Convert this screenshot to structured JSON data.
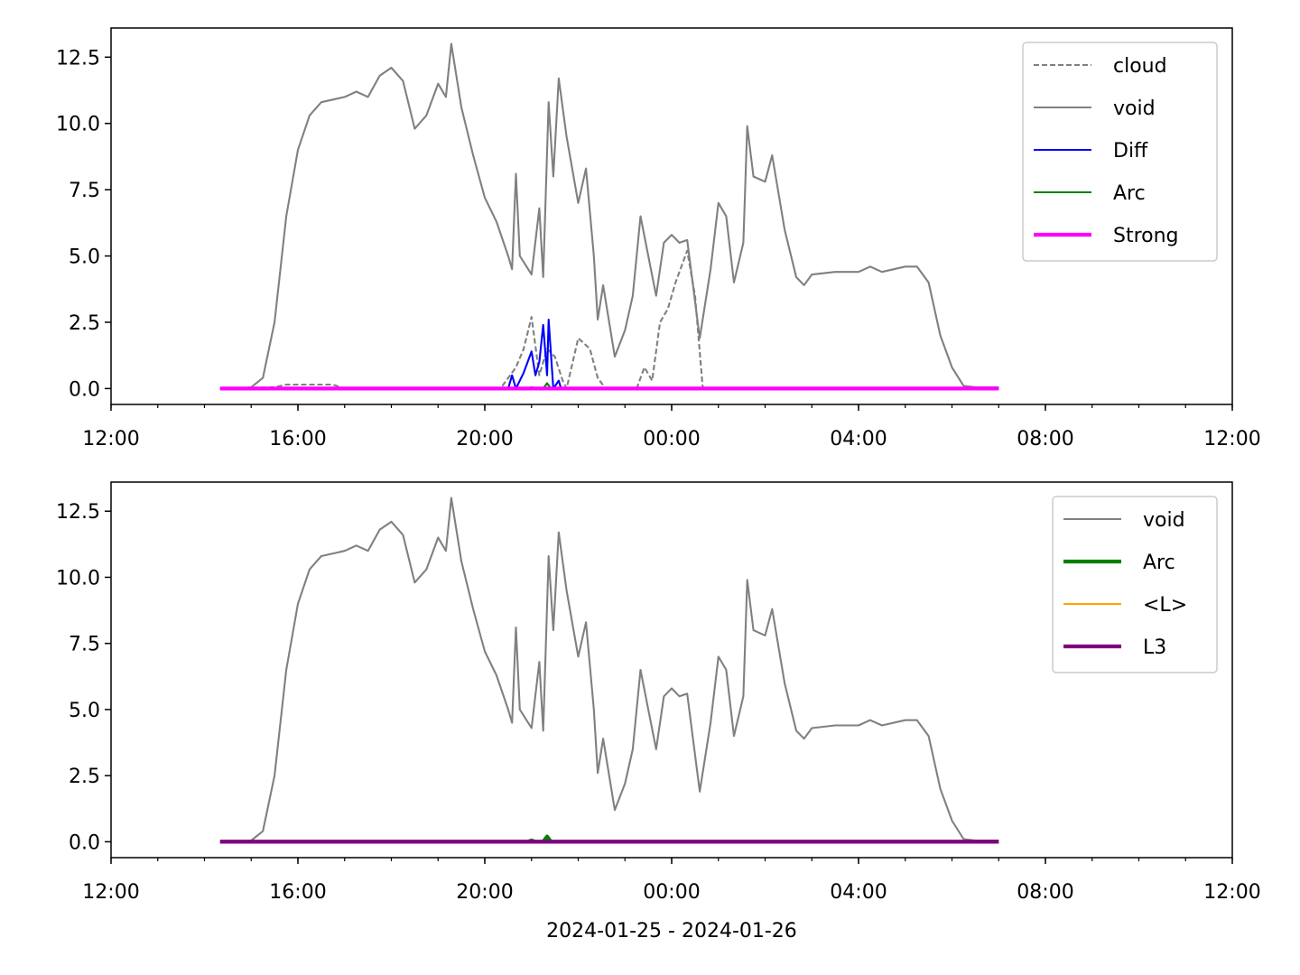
{
  "chart_data": [
    {
      "type": "line",
      "xlim": [
        "2024-01-25 12:00",
        "2024-01-26 12:00"
      ],
      "xticks": [
        {
          "value": "2024-01-25 12:00",
          "label": "12:00"
        },
        {
          "value": "2024-01-25 16:00",
          "label": "16:00"
        },
        {
          "value": "2024-01-25 20:00",
          "label": "20:00"
        },
        {
          "value": "2024-01-26 00:00",
          "label": "00:00"
        },
        {
          "value": "2024-01-26 04:00",
          "label": "04:00"
        },
        {
          "value": "2024-01-26 08:00",
          "label": "08:00"
        },
        {
          "value": "2024-01-26 12:00",
          "label": "12:00"
        }
      ],
      "ylim": [
        -0.6,
        13.6
      ],
      "yticks": [
        {
          "value": 0,
          "label": "0.0"
        },
        2.5,
        {
          "value": 5,
          "label": "5.0"
        },
        7.5,
        {
          "value": 10,
          "label": "10.0"
        },
        12.5
      ],
      "legend": "upper right",
      "series": [
        {
          "name": "cloud",
          "color": "#808080",
          "linestyle": "dashed",
          "linewidth": 1.5,
          "x": [
            "2024-01-25 14:20",
            "2024-01-25 15:30",
            "2024-01-25 15:45",
            "2024-01-25 16:45",
            "2024-01-25 17:00",
            "2024-01-25 20:20",
            "2024-01-25 20:40",
            "2024-01-25 20:50",
            "2024-01-25 21:00",
            "2024-01-25 21:10",
            "2024-01-25 21:20",
            "2024-01-25 21:30",
            "2024-01-25 21:40",
            "2024-01-25 21:45",
            "2024-01-25 22:00",
            "2024-01-25 22:15",
            "2024-01-25 22:25",
            "2024-01-25 22:35",
            "2024-01-25 23:15",
            "2024-01-25 23:25",
            "2024-01-25 23:35",
            "2024-01-25 23:45",
            "2024-01-25 23:55",
            "2024-01-26 00:05",
            "2024-01-26 00:20",
            "2024-01-26 00:30",
            "2024-01-26 00:40",
            "2024-01-26 07:00"
          ],
          "values": [
            0,
            0.05,
            0.15,
            0.15,
            0,
            0,
            0.8,
            1.5,
            2.7,
            0.5,
            1.5,
            1.2,
            0.3,
            0,
            1.9,
            1.5,
            0.4,
            0,
            0,
            0.8,
            0.3,
            2.5,
            3.0,
            4.0,
            5.2,
            3.5,
            0,
            0
          ]
        },
        {
          "name": "void",
          "color": "#808080",
          "linestyle": "solid",
          "linewidth": 1.5,
          "x": [
            "2024-01-25 14:20",
            "2024-01-25 14:45",
            "2024-01-25 15:00",
            "2024-01-25 15:15",
            "2024-01-25 15:30",
            "2024-01-25 15:45",
            "2024-01-25 16:00",
            "2024-01-25 16:15",
            "2024-01-25 16:30",
            "2024-01-25 16:45",
            "2024-01-25 17:00",
            "2024-01-25 17:15",
            "2024-01-25 17:30",
            "2024-01-25 17:45",
            "2024-01-25 18:00",
            "2024-01-25 18:15",
            "2024-01-25 18:30",
            "2024-01-25 18:45",
            "2024-01-25 19:00",
            "2024-01-25 19:10",
            "2024-01-25 19:17",
            "2024-01-25 19:30",
            "2024-01-25 19:45",
            "2024-01-25 20:00",
            "2024-01-25 20:15",
            "2024-01-25 20:30",
            "2024-01-25 20:35",
            "2024-01-25 20:40",
            "2024-01-25 20:45",
            "2024-01-25 21:00",
            "2024-01-25 21:10",
            "2024-01-25 21:15",
            "2024-01-25 21:22",
            "2024-01-25 21:28",
            "2024-01-25 21:35",
            "2024-01-25 21:45",
            "2024-01-25 22:00",
            "2024-01-25 22:10",
            "2024-01-25 22:20",
            "2024-01-25 22:25",
            "2024-01-25 22:32",
            "2024-01-25 22:47",
            "2024-01-25 23:00",
            "2024-01-25 23:10",
            "2024-01-25 23:20",
            "2024-01-25 23:30",
            "2024-01-25 23:40",
            "2024-01-25 23:50",
            "2024-01-26 00:00",
            "2024-01-26 00:10",
            "2024-01-26 00:20",
            "2024-01-26 00:36",
            "2024-01-26 00:50",
            "2024-01-26 01:00",
            "2024-01-26 01:10",
            "2024-01-26 01:20",
            "2024-01-26 01:32",
            "2024-01-26 01:37",
            "2024-01-26 01:45",
            "2024-01-26 02:00",
            "2024-01-26 02:09",
            "2024-01-26 02:25",
            "2024-01-26 02:40",
            "2024-01-26 02:50",
            "2024-01-26 03:00",
            "2024-01-26 03:30",
            "2024-01-26 04:00",
            "2024-01-26 04:15",
            "2024-01-26 04:30",
            "2024-01-26 05:00",
            "2024-01-26 05:15",
            "2024-01-26 05:30",
            "2024-01-26 05:45",
            "2024-01-26 06:00",
            "2024-01-26 06:15",
            "2024-01-26 06:30",
            "2024-01-26 07:00"
          ],
          "values": [
            0,
            0,
            0.05,
            0.4,
            2.5,
            6.5,
            9.0,
            10.3,
            10.8,
            10.9,
            11.0,
            11.2,
            11.0,
            11.8,
            12.1,
            11.6,
            9.8,
            10.3,
            11.5,
            11.0,
            13.0,
            10.6,
            8.8,
            7.2,
            6.3,
            5.0,
            4.5,
            8.1,
            5.0,
            4.3,
            6.8,
            4.2,
            10.8,
            8.0,
            11.7,
            9.5,
            7.0,
            8.3,
            5.0,
            2.6,
            3.9,
            1.2,
            2.2,
            3.5,
            6.5,
            5.0,
            3.5,
            5.5,
            5.8,
            5.5,
            5.6,
            1.9,
            4.5,
            7.0,
            6.5,
            4.0,
            5.5,
            9.9,
            8.0,
            7.8,
            8.8,
            6.0,
            4.2,
            3.9,
            4.3,
            4.4,
            4.4,
            4.6,
            4.4,
            4.6,
            4.6,
            4.0,
            2.0,
            0.8,
            0.1,
            0.05,
            0.05
          ]
        },
        {
          "name": "Diff",
          "color": "#0000ff",
          "linestyle": "solid",
          "linewidth": 1.5,
          "x": [
            "2024-01-25 14:20",
            "2024-01-25 20:30",
            "2024-01-25 20:35",
            "2024-01-25 20:40",
            "2024-01-25 20:50",
            "2024-01-25 21:00",
            "2024-01-25 21:05",
            "2024-01-25 21:10",
            "2024-01-25 21:15",
            "2024-01-25 21:20",
            "2024-01-25 21:22",
            "2024-01-25 21:28",
            "2024-01-25 21:35",
            "2024-01-25 21:38",
            "2024-01-26 07:00"
          ],
          "values": [
            0,
            0,
            0.5,
            0,
            0.6,
            1.4,
            0.5,
            1.0,
            2.4,
            0.5,
            2.6,
            0,
            0.3,
            0,
            0
          ]
        },
        {
          "name": "Arc",
          "color": "#008000",
          "linestyle": "solid",
          "linewidth": 1.5,
          "x": [
            "2024-01-25 14:20",
            "2024-01-25 20:55",
            "2024-01-25 21:00",
            "2024-01-25 21:05",
            "2024-01-25 21:15",
            "2024-01-25 21:20",
            "2024-01-25 21:25",
            "2024-01-26 07:00"
          ],
          "values": [
            0,
            0,
            0.05,
            0,
            0,
            0.2,
            0,
            0
          ]
        },
        {
          "name": "Strong",
          "color": "#ff00ff",
          "linestyle": "solid",
          "linewidth": 3,
          "x": [
            "2024-01-25 14:20",
            "2024-01-26 07:00"
          ],
          "values": [
            0,
            0
          ]
        }
      ]
    },
    {
      "type": "line",
      "xlabel": "2024-01-25 - 2024-01-26",
      "xlim": [
        "2024-01-25 12:00",
        "2024-01-26 12:00"
      ],
      "xticks": [
        {
          "value": "2024-01-25 12:00",
          "label": "12:00"
        },
        {
          "value": "2024-01-25 16:00",
          "label": "16:00"
        },
        {
          "value": "2024-01-25 20:00",
          "label": "20:00"
        },
        {
          "value": "2024-01-26 00:00",
          "label": "00:00"
        },
        {
          "value": "2024-01-26 04:00",
          "label": "04:00"
        },
        {
          "value": "2024-01-26 08:00",
          "label": "08:00"
        },
        {
          "value": "2024-01-26 12:00",
          "label": "12:00"
        }
      ],
      "ylim": [
        -0.6,
        13.6
      ],
      "yticks": [
        {
          "value": 0,
          "label": "0.0"
        },
        2.5,
        {
          "value": 5,
          "label": "5.0"
        },
        7.5,
        {
          "value": 10,
          "label": "10.0"
        },
        12.5
      ],
      "legend": "upper right",
      "series": [
        {
          "name": "void",
          "color": "#808080",
          "linestyle": "solid",
          "linewidth": 1.5,
          "x": [
            "2024-01-25 14:20",
            "2024-01-25 14:45",
            "2024-01-25 15:00",
            "2024-01-25 15:15",
            "2024-01-25 15:30",
            "2024-01-25 15:45",
            "2024-01-25 16:00",
            "2024-01-25 16:15",
            "2024-01-25 16:30",
            "2024-01-25 16:45",
            "2024-01-25 17:00",
            "2024-01-25 17:15",
            "2024-01-25 17:30",
            "2024-01-25 17:45",
            "2024-01-25 18:00",
            "2024-01-25 18:15",
            "2024-01-25 18:30",
            "2024-01-25 18:45",
            "2024-01-25 19:00",
            "2024-01-25 19:10",
            "2024-01-25 19:17",
            "2024-01-25 19:30",
            "2024-01-25 19:45",
            "2024-01-25 20:00",
            "2024-01-25 20:15",
            "2024-01-25 20:30",
            "2024-01-25 20:35",
            "2024-01-25 20:40",
            "2024-01-25 20:45",
            "2024-01-25 21:00",
            "2024-01-25 21:10",
            "2024-01-25 21:15",
            "2024-01-25 21:22",
            "2024-01-25 21:28",
            "2024-01-25 21:35",
            "2024-01-25 21:45",
            "2024-01-25 22:00",
            "2024-01-25 22:10",
            "2024-01-25 22:20",
            "2024-01-25 22:25",
            "2024-01-25 22:32",
            "2024-01-25 22:47",
            "2024-01-25 23:00",
            "2024-01-25 23:10",
            "2024-01-25 23:20",
            "2024-01-25 23:30",
            "2024-01-25 23:40",
            "2024-01-25 23:50",
            "2024-01-26 00:00",
            "2024-01-26 00:10",
            "2024-01-26 00:20",
            "2024-01-26 00:36",
            "2024-01-26 00:50",
            "2024-01-26 01:00",
            "2024-01-26 01:10",
            "2024-01-26 01:20",
            "2024-01-26 01:32",
            "2024-01-26 01:37",
            "2024-01-26 01:45",
            "2024-01-26 02:00",
            "2024-01-26 02:09",
            "2024-01-26 02:25",
            "2024-01-26 02:40",
            "2024-01-26 02:50",
            "2024-01-26 03:00",
            "2024-01-26 03:30",
            "2024-01-26 04:00",
            "2024-01-26 04:15",
            "2024-01-26 04:30",
            "2024-01-26 05:00",
            "2024-01-26 05:15",
            "2024-01-26 05:30",
            "2024-01-26 05:45",
            "2024-01-26 06:00",
            "2024-01-26 06:15",
            "2024-01-26 06:30",
            "2024-01-26 07:00"
          ],
          "values": [
            0,
            0,
            0.05,
            0.4,
            2.5,
            6.5,
            9.0,
            10.3,
            10.8,
            10.9,
            11.0,
            11.2,
            11.0,
            11.8,
            12.1,
            11.6,
            9.8,
            10.3,
            11.5,
            11.0,
            13.0,
            10.6,
            8.8,
            7.2,
            6.3,
            5.0,
            4.5,
            8.1,
            5.0,
            4.3,
            6.8,
            4.2,
            10.8,
            8.0,
            11.7,
            9.5,
            7.0,
            8.3,
            5.0,
            2.6,
            3.9,
            1.2,
            2.2,
            3.5,
            6.5,
            5.0,
            3.5,
            5.5,
            5.8,
            5.5,
            5.6,
            1.9,
            4.5,
            7.0,
            6.5,
            4.0,
            5.5,
            9.9,
            8.0,
            7.8,
            8.8,
            6.0,
            4.2,
            3.9,
            4.3,
            4.4,
            4.4,
            4.6,
            4.4,
            4.6,
            4.6,
            4.0,
            2.0,
            0.8,
            0.1,
            0.05,
            0.05
          ]
        },
        {
          "name": "Arc",
          "color": "#008000",
          "linestyle": "solid",
          "linewidth": 3,
          "x": [
            "2024-01-25 14:20",
            "2024-01-25 20:55",
            "2024-01-25 21:00",
            "2024-01-25 21:05",
            "2024-01-25 21:15",
            "2024-01-25 21:20",
            "2024-01-25 21:25",
            "2024-01-26 07:00"
          ],
          "values": [
            0,
            0,
            0.05,
            0,
            0,
            0.2,
            0,
            0
          ]
        },
        {
          "name": "<L>",
          "color": "#ffa500",
          "linestyle": "solid",
          "linewidth": 1.5,
          "x": [
            "2024-01-25 14:20",
            "2024-01-26 07:00"
          ],
          "values": [
            0,
            0
          ]
        },
        {
          "name": "L3",
          "color": "#800080",
          "linestyle": "solid",
          "linewidth": 3,
          "x": [
            "2024-01-25 14:20",
            "2024-01-26 07:00"
          ],
          "values": [
            0,
            0
          ]
        }
      ]
    }
  ]
}
